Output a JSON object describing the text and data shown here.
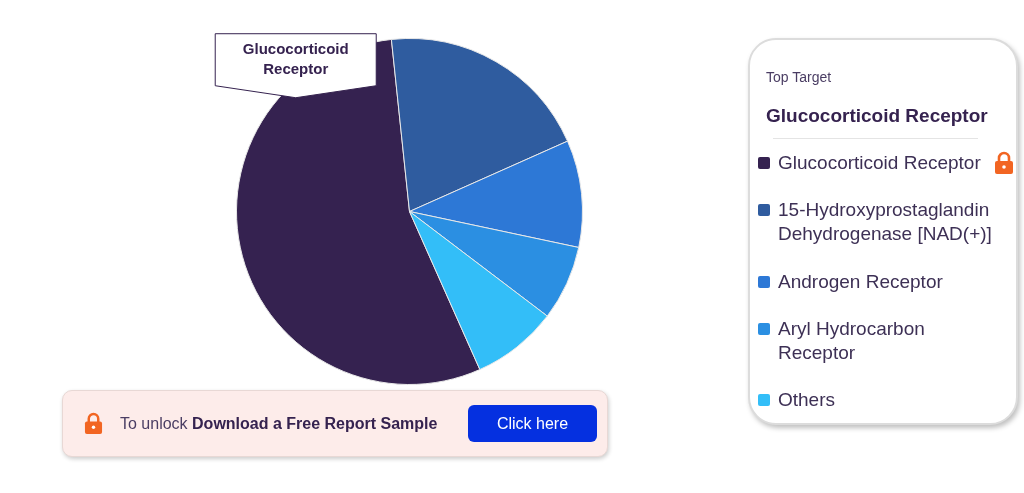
{
  "chart_data": {
    "type": "pie",
    "categories": [
      "Glucocorticoid Receptor",
      "15-Hydroxyprostaglandin Dehydrogenase [NAD(+)]",
      "Androgen Receptor",
      "Aryl Hydrocarbon Receptor",
      "Others"
    ],
    "values": [
      55,
      20,
      10,
      7,
      8
    ],
    "colors": [
      "#352250",
      "#2f5c9f",
      "#2d78d6",
      "#2b8fe2",
      "#33bef8"
    ],
    "legend": "right",
    "legend_title": "Top Target",
    "annotations": [
      "Glucocorticoid Receptor",
      "Glucocorticoid Receptor",
      "To unlock",
      "Download a Free Report Sample",
      "Click here"
    ]
  }
}
